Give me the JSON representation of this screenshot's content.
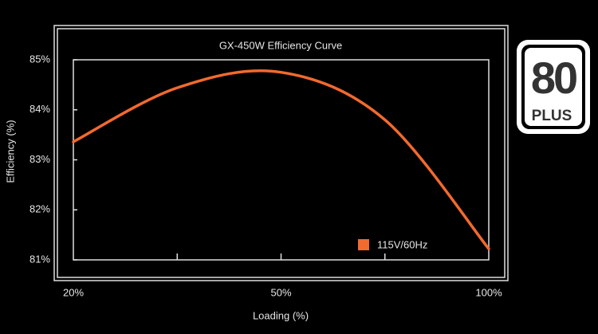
{
  "chart_data": {
    "type": "line",
    "title": "GX-450W Efficiency Curve",
    "x_label": "Loading (%)",
    "y_label": "Efficiency (%)",
    "categories": [
      "20%",
      null,
      "50%",
      null,
      "100%"
    ],
    "series": [
      {
        "name": "115V/60Hz",
        "color": "#f26a2e",
        "values": [
          83.36,
          84.44,
          84.75,
          83.8,
          81.22
        ]
      }
    ],
    "ylim": [
      81,
      85
    ],
    "yticks": [
      {
        "value": 81,
        "label": "81%"
      },
      {
        "value": 82,
        "label": "82%"
      },
      {
        "value": 83,
        "label": "83%"
      },
      {
        "value": 84,
        "label": "84%"
      },
      {
        "value": 85,
        "label": "85%"
      }
    ],
    "legend": "lower right"
  },
  "logo": {
    "number": "80",
    "text": "PLUS"
  }
}
